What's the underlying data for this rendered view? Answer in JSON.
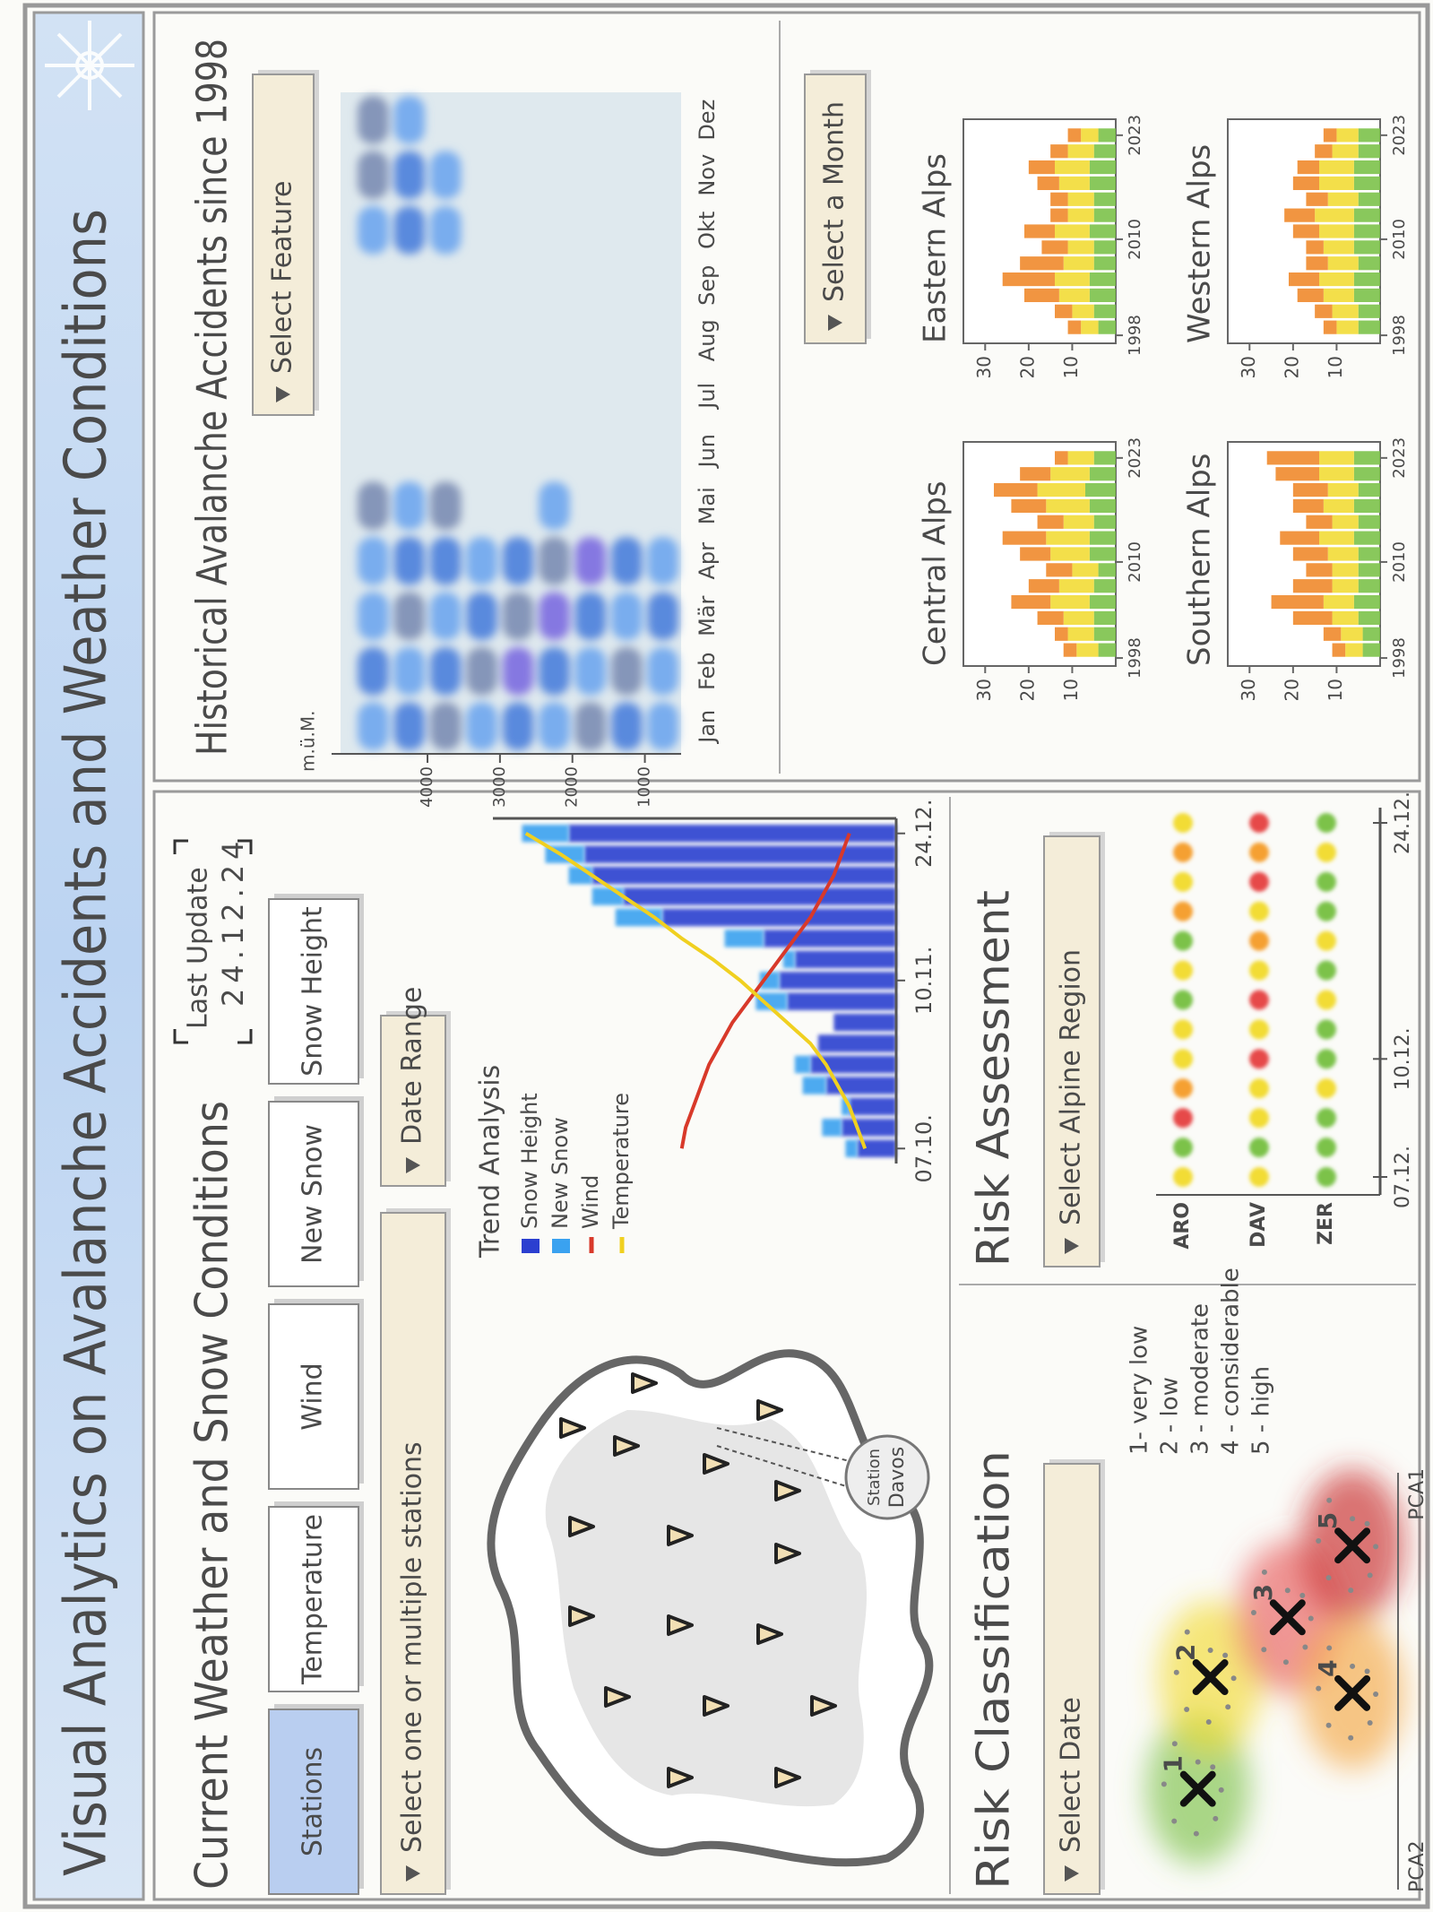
{
  "header": {
    "title": "Visual Analytics on Avalanche Accidents and Weather Conditions"
  },
  "current": {
    "title": "Current Weather and Snow Conditions",
    "last_update_label": "Last Update",
    "last_update": "24.12.24",
    "tabs": [
      "Stations",
      "Temperature",
      "Wind",
      "New Snow",
      "Snow Height"
    ],
    "active_tab": 0,
    "station_select": "Select one or multiple stations",
    "date_range": "Date Range",
    "map_tooltip": [
      "Station",
      "Davos"
    ]
  },
  "risk_classification": {
    "title": "Risk Classification",
    "select": "Select Date"
  },
  "risk_assessment": {
    "title": "Risk Assessment",
    "select": "Select Alpine Region"
  },
  "risk_levels": {
    "labels": [
      "1- very low",
      "2 - low",
      "3 - moderate",
      "4 - considerable",
      "5 - high"
    ],
    "colors": [
      "#7cc24a",
      "#f2dc36",
      "#f5a030",
      "#e64a4a",
      "#c02020"
    ]
  },
  "historical": {
    "title": "Historical Avalanche Accidents since 1998",
    "select_feature": "Select Feature",
    "select_month": "Select a Month"
  },
  "chart_data": [
    {
      "type": "combo",
      "title": "Trend Analysis",
      "categories": [
        "07.10.",
        null,
        null,
        null,
        null,
        null,
        null,
        null,
        "10.11.",
        null,
        null,
        null,
        null,
        null,
        null,
        "24.12."
      ],
      "ylim": [
        0,
        100
      ],
      "series": [
        {
          "name": "Snow Height",
          "type": "bar",
          "color": "#2b3fd0",
          "values": [
            10,
            14,
            12,
            18,
            22,
            20,
            16,
            28,
            30,
            26,
            34,
            60,
            70,
            78,
            80,
            84
          ]
        },
        {
          "name": "New Snow",
          "type": "bar",
          "color": "#3aa2f0",
          "values": [
            3,
            5,
            2,
            6,
            4,
            0,
            0,
            8,
            5,
            3,
            10,
            12,
            8,
            6,
            10,
            12
          ]
        },
        {
          "name": "Wind",
          "type": "line",
          "color": "#d8392a",
          "values": [
            55,
            54,
            52,
            50,
            48,
            45,
            42,
            38,
            34,
            30,
            26,
            22,
            19,
            16,
            14,
            12
          ]
        },
        {
          "name": "Temperature",
          "type": "line",
          "color": "#f0d020",
          "values": [
            8,
            10,
            12,
            15,
            18,
            22,
            28,
            34,
            40,
            47,
            55,
            62,
            70,
            78,
            86,
            95
          ]
        }
      ]
    },
    {
      "type": "heatmap",
      "ylabel": "m.ü.M.",
      "x": [
        "Jan",
        "Feb",
        "Mär",
        "Apr",
        "Mai",
        "Jun",
        "Jul",
        "Aug",
        "Sep",
        "Okt",
        "Nov",
        "Dez"
      ],
      "y": [
        4750,
        4250,
        3750,
        3250,
        2750,
        2250,
        1750,
        1250,
        750
      ],
      "ylim": [
        500,
        5200
      ],
      "yticks": [
        4000,
        3000,
        2000,
        1000
      ],
      "background": "#dfe9ee",
      "colors": [
        "#6ea6ee",
        "#4a7fdc",
        "#7b8db4",
        "#7b6ce0"
      ],
      "values": [
        [
          1,
          2,
          1,
          1,
          3,
          0,
          0,
          0,
          0,
          1,
          3,
          3
        ],
        [
          2,
          1,
          3,
          2,
          1,
          0,
          0,
          0,
          0,
          2,
          2,
          1
        ],
        [
          3,
          2,
          1,
          2,
          3,
          0,
          0,
          0,
          0,
          1,
          1,
          0
        ],
        [
          1,
          3,
          2,
          1,
          0,
          0,
          0,
          0,
          0,
          0,
          0,
          0
        ],
        [
          2,
          4,
          3,
          2,
          0,
          0,
          0,
          0,
          0,
          0,
          0,
          0
        ],
        [
          1,
          2,
          4,
          3,
          1,
          0,
          0,
          0,
          0,
          0,
          0,
          0
        ],
        [
          3,
          1,
          2,
          4,
          0,
          0,
          0,
          0,
          0,
          0,
          0,
          0
        ],
        [
          2,
          3,
          1,
          2,
          0,
          0,
          0,
          0,
          0,
          0,
          0,
          0
        ],
        [
          1,
          1,
          2,
          1,
          0,
          0,
          0,
          0,
          0,
          0,
          0,
          0
        ]
      ]
    },
    {
      "type": "stacked-bar",
      "title": "Central Alps",
      "x": [
        1999,
        2001,
        2003,
        2005,
        2007,
        2009,
        2011,
        2013,
        2015,
        2017,
        2019,
        2021,
        2023
      ],
      "xlim": [
        1997,
        2025
      ],
      "xticks": [
        1998,
        2010,
        2023
      ],
      "ylim": [
        0,
        35
      ],
      "yticks": [
        10,
        20,
        30
      ],
      "series": [
        {
          "color": "#7cc24a",
          "values": [
            4,
            5,
            5,
            6,
            5,
            4,
            6,
            6,
            5,
            6,
            7,
            6,
            5
          ]
        },
        {
          "color": "#f2dc36",
          "values": [
            5,
            6,
            7,
            9,
            8,
            6,
            9,
            10,
            7,
            10,
            11,
            9,
            6
          ]
        },
        {
          "color": "#f08a2c",
          "values": [
            3,
            3,
            6,
            9,
            7,
            6,
            7,
            10,
            6,
            8,
            10,
            7,
            3
          ]
        }
      ]
    },
    {
      "type": "stacked-bar",
      "title": "Eastern Alps",
      "x": [
        1999,
        2001,
        2003,
        2005,
        2007,
        2009,
        2011,
        2013,
        2015,
        2017,
        2019,
        2021,
        2023
      ],
      "xlim": [
        1997,
        2025
      ],
      "xticks": [
        1998,
        2010,
        2023
      ],
      "ylim": [
        0,
        35
      ],
      "yticks": [
        10,
        20,
        30
      ],
      "series": [
        {
          "color": "#7cc24a",
          "values": [
            4,
            5,
            6,
            6,
            5,
            5,
            6,
            5,
            5,
            6,
            6,
            5,
            4
          ]
        },
        {
          "color": "#f2dc36",
          "values": [
            4,
            5,
            7,
            8,
            7,
            6,
            8,
            6,
            6,
            7,
            8,
            6,
            4
          ]
        },
        {
          "color": "#f08a2c",
          "values": [
            3,
            4,
            8,
            12,
            10,
            6,
            7,
            4,
            4,
            5,
            6,
            4,
            3
          ]
        }
      ]
    },
    {
      "type": "stacked-bar",
      "title": "Southern Alps",
      "x": [
        1999,
        2001,
        2003,
        2005,
        2007,
        2009,
        2011,
        2013,
        2015,
        2017,
        2019,
        2021,
        2023
      ],
      "xlim": [
        1997,
        2025
      ],
      "xticks": [
        1998,
        2010,
        2023
      ],
      "ylim": [
        0,
        35
      ],
      "yticks": [
        10,
        20,
        30
      ],
      "series": [
        {
          "color": "#7cc24a",
          "values": [
            4,
            4,
            5,
            6,
            5,
            5,
            5,
            6,
            5,
            6,
            5,
            6,
            6
          ]
        },
        {
          "color": "#f2dc36",
          "values": [
            4,
            5,
            6,
            7,
            6,
            6,
            7,
            8,
            6,
            7,
            7,
            8,
            8
          ]
        },
        {
          "color": "#f08a2c",
          "values": [
            3,
            4,
            9,
            12,
            9,
            6,
            8,
            9,
            6,
            7,
            8,
            10,
            12
          ]
        }
      ]
    },
    {
      "type": "stacked-bar",
      "title": "Western Alps",
      "x": [
        1999,
        2001,
        2003,
        2005,
        2007,
        2009,
        2011,
        2013,
        2015,
        2017,
        2019,
        2021,
        2023
      ],
      "xlim": [
        1997,
        2025
      ],
      "xticks": [
        1998,
        2010,
        2023
      ],
      "ylim": [
        0,
        35
      ],
      "yticks": [
        10,
        20,
        30
      ],
      "series": [
        {
          "color": "#7cc24a",
          "values": [
            5,
            5,
            6,
            6,
            5,
            6,
            6,
            6,
            5,
            6,
            6,
            5,
            5
          ]
        },
        {
          "color": "#f2dc36",
          "values": [
            5,
            6,
            7,
            8,
            7,
            7,
            8,
            9,
            7,
            8,
            8,
            6,
            5
          ]
        },
        {
          "color": "#f08a2c",
          "values": [
            3,
            4,
            6,
            7,
            5,
            4,
            6,
            7,
            5,
            6,
            5,
            4,
            3
          ]
        }
      ]
    },
    {
      "type": "dot-matrix",
      "rows": [
        "ARO",
        "DAV",
        "ZER"
      ],
      "categories": [
        "07.12.",
        null,
        null,
        null,
        "10.12.",
        null,
        null,
        null,
        null,
        null,
        null,
        null,
        "24.12."
      ],
      "values": [
        [
          2,
          1,
          4,
          3,
          2,
          2,
          1,
          2,
          1,
          3,
          2,
          3,
          2
        ],
        [
          2,
          1,
          2,
          2,
          4,
          2,
          4,
          2,
          3,
          2,
          4,
          3,
          4
        ],
        [
          1,
          1,
          1,
          2,
          1,
          1,
          2,
          1,
          2,
          1,
          1,
          2,
          1
        ]
      ]
    },
    {
      "type": "scatter",
      "xlabel": "PCA1",
      "ylabel": "PCA2",
      "xlim": [
        0,
        10
      ],
      "ylim": [
        0,
        10
      ],
      "points": [
        {
          "label": "1",
          "x": 2.3,
          "y": 7.6,
          "color": "#7cc24a"
        },
        {
          "label": "2",
          "x": 5.1,
          "y": 7.1,
          "color": "#f2dc36"
        },
        {
          "label": "3",
          "x": 6.6,
          "y": 4.0,
          "color": "#e86060"
        },
        {
          "label": "4",
          "x": 4.7,
          "y": 1.4,
          "color": "#f5a847"
        },
        {
          "label": "5",
          "x": 8.4,
          "y": 1.4,
          "color": "#c82828"
        }
      ]
    }
  ]
}
